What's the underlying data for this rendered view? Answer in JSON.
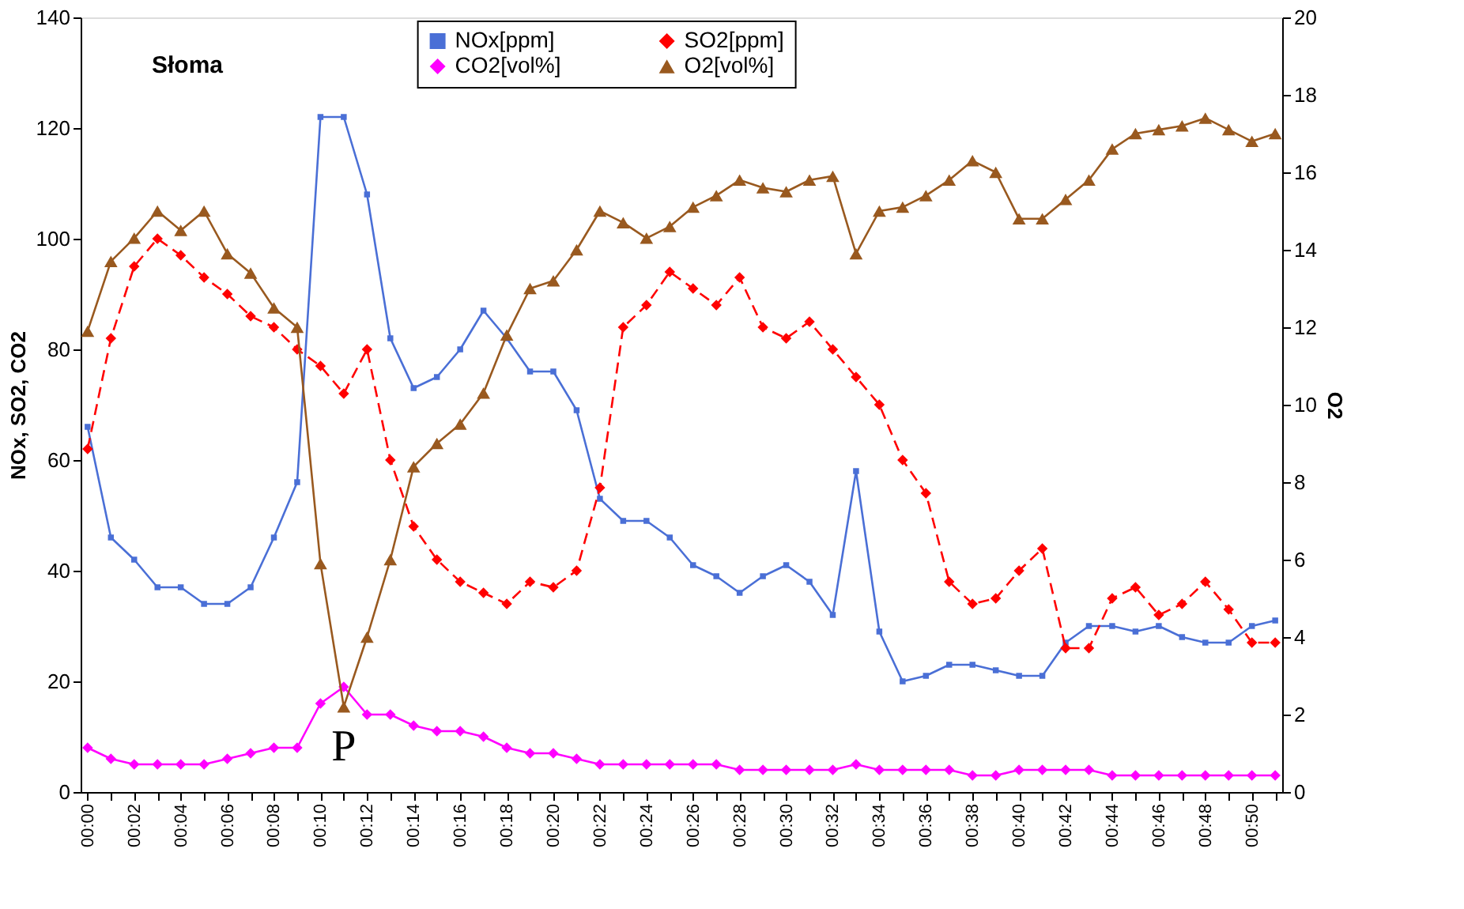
{
  "chart_data": {
    "type": "line",
    "ylabel": "NOx, SO2, CO2",
    "y2label": "O2",
    "categories": [
      "00:00",
      null,
      "00:02",
      null,
      "00:04",
      null,
      "00:06",
      null,
      "00:08",
      null,
      "00:10",
      null,
      "00:12",
      null,
      "00:14",
      null,
      "00:16",
      null,
      "00:18",
      null,
      "00:20",
      null,
      "00:22",
      null,
      "00:24",
      null,
      "00:26",
      null,
      "00:28",
      null,
      "00:30",
      null,
      "00:32",
      null,
      "00:34",
      null,
      "00:36",
      null,
      "00:38",
      null,
      "00:40",
      null,
      "00:42",
      null,
      "00:44",
      null,
      "00:46",
      null,
      "00:48",
      null,
      "00:50",
      null
    ],
    "series": [
      {
        "name": "NOx[ppm]",
        "color": "#4a6fd6",
        "marker": "square",
        "line_style": "solid",
        "values": [
          66,
          46,
          42,
          37,
          37,
          34,
          34,
          37,
          46,
          56,
          122,
          122,
          108,
          82,
          73,
          75,
          80,
          87,
          82,
          76,
          76,
          69,
          53,
          49,
          49,
          46,
          41,
          39,
          36,
          39,
          41,
          38,
          32,
          58,
          29,
          20,
          21,
          23,
          23,
          22,
          21,
          21,
          27,
          30,
          30,
          29,
          30,
          28,
          27,
          27,
          30,
          31
        ]
      },
      {
        "name": "CO2[vol%]",
        "color": "#ff00ff",
        "marker": "diamond",
        "line_style": "solid",
        "values": [
          8,
          6,
          5,
          5,
          5,
          5,
          6,
          7,
          8,
          8,
          16,
          19,
          14,
          14,
          12,
          11,
          11,
          10,
          8,
          7,
          7,
          6,
          5,
          5,
          5,
          5,
          5,
          5,
          4,
          4,
          4,
          4,
          4,
          5,
          4,
          4,
          4,
          4,
          3,
          3,
          4,
          4,
          4,
          4,
          3,
          3,
          3,
          3,
          3,
          3,
          3,
          3
        ]
      },
      {
        "name": "SO2[ppm]",
        "color": "#ff0000",
        "marker": "diamond",
        "line_style": "dashed",
        "values": [
          62,
          82,
          95,
          100,
          97,
          93,
          90,
          86,
          84,
          80,
          77,
          72,
          80,
          60,
          48,
          42,
          38,
          36,
          34,
          38,
          37,
          40,
          55,
          84,
          88,
          94,
          91,
          88,
          93,
          84,
          82,
          85,
          80,
          75,
          70,
          60,
          54,
          38,
          34,
          35,
          40,
          44,
          26,
          26,
          35,
          37,
          32,
          34,
          38,
          33,
          27,
          27
        ]
      },
      {
        "name": "O2[vol%]",
        "color": "#99591f",
        "marker": "triangle",
        "line_style": "solid",
        "axis": "y2",
        "values": [
          11.9,
          13.7,
          14.3,
          15.0,
          14.5,
          15.0,
          13.9,
          13.4,
          12.5,
          12.0,
          5.9,
          2.2,
          4.0,
          6.0,
          8.4,
          9.0,
          9.5,
          10.3,
          11.8,
          13.0,
          13.2,
          14.0,
          15.0,
          14.7,
          14.3,
          14.6,
          15.1,
          15.4,
          15.8,
          15.6,
          15.5,
          15.8,
          15.9,
          13.9,
          15.0,
          15.1,
          15.4,
          15.8,
          16.3,
          16.0,
          14.8,
          14.8,
          15.3,
          15.8,
          16.6,
          17.0,
          17.1,
          17.2,
          17.4,
          17.1,
          16.8,
          17.0
        ]
      }
    ],
    "ylim": [
      0,
      140
    ],
    "yticks": [
      0,
      20,
      40,
      60,
      80,
      100,
      120,
      140
    ],
    "y2lim": [
      0,
      20
    ],
    "y2ticks": [
      0,
      2,
      4,
      6,
      8,
      10,
      12,
      14,
      16,
      18,
      20
    ],
    "grid": false,
    "legend": "top",
    "annotations": [
      "Słoma",
      "P"
    ]
  }
}
